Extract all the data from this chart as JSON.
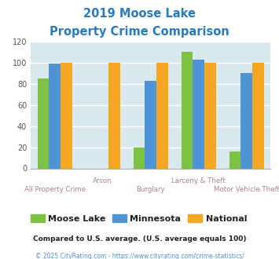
{
  "title_line1": "2019 Moose Lake",
  "title_line2": "Property Crime Comparison",
  "title_color": "#2b7bba",
  "categories": [
    "All Property Crime",
    "Arson",
    "Burglary",
    "Larceny & Theft",
    "Motor Vehicle Theft"
  ],
  "series": {
    "Moose Lake": [
      85,
      0,
      20,
      110,
      16
    ],
    "Minnesota": [
      99,
      0,
      83,
      103,
      90
    ],
    "National": [
      100,
      100,
      100,
      100,
      100
    ]
  },
  "colors": {
    "Moose Lake": "#7dc242",
    "Minnesota": "#4f94d4",
    "National": "#f5a623"
  },
  "ylim": [
    0,
    120
  ],
  "yticks": [
    0,
    20,
    40,
    60,
    80,
    100,
    120
  ],
  "background_color": "#d8e8ed",
  "grid_color": "#ffffff",
  "footnote": "Compared to U.S. average. (U.S. average equals 100)",
  "footnote2": "© 2025 CityRating.com - https://www.cityrating.com/crime-statistics/",
  "footnote_color": "#222222",
  "footnote2_color": "#4f94d4",
  "xlabel_color": "#b08090",
  "legend_text_color": "#222222"
}
